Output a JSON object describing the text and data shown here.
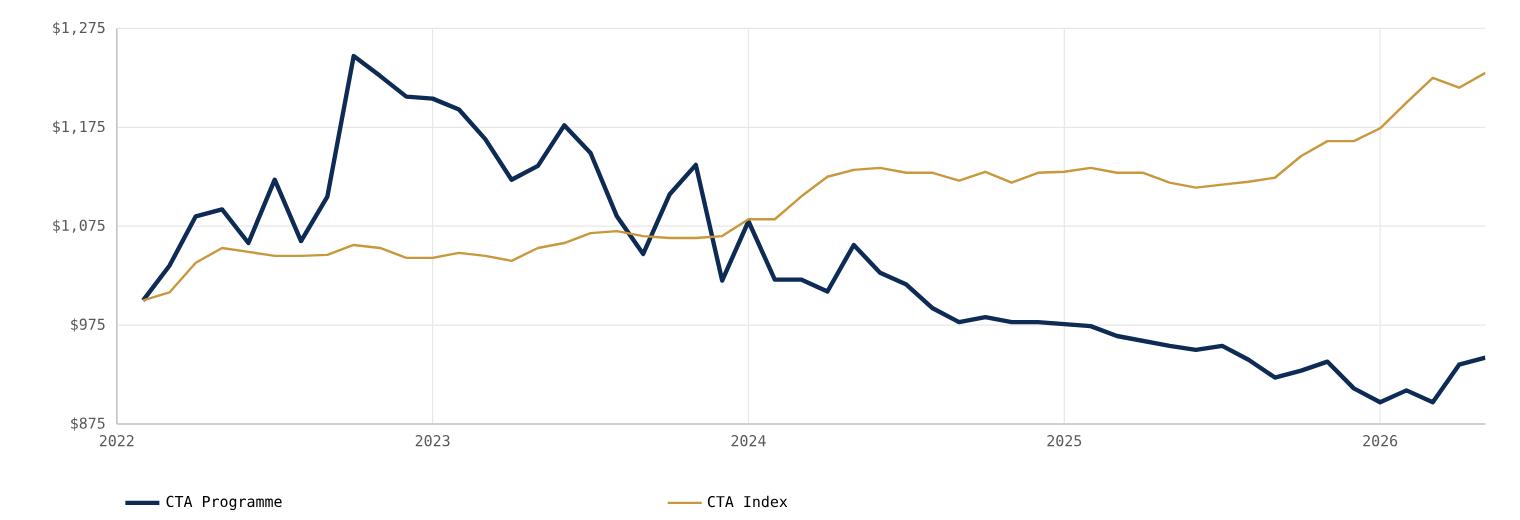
{
  "chart_data": {
    "type": "line",
    "x": [
      "2022-02",
      "2022-03",
      "2022-04",
      "2022-05",
      "2022-06",
      "2022-07",
      "2022-08",
      "2022-09",
      "2022-10",
      "2022-11",
      "2022-12",
      "2023-01",
      "2023-02",
      "2023-03",
      "2023-04",
      "2023-05",
      "2023-06",
      "2023-07",
      "2023-08",
      "2023-09",
      "2023-10",
      "2023-11",
      "2023-12",
      "2024-01",
      "2024-02",
      "2024-03",
      "2024-04",
      "2024-05",
      "2024-06",
      "2024-07",
      "2024-08",
      "2024-09",
      "2024-10",
      "2024-11",
      "2024-12",
      "2025-01",
      "2025-02",
      "2025-03",
      "2025-04",
      "2025-05",
      "2025-06",
      "2025-07",
      "2025-08",
      "2025-09",
      "2025-10",
      "2025-11",
      "2025-12",
      "2026-01",
      "2026-02",
      "2026-03",
      "2026-04",
      "2026-05"
    ],
    "series": [
      {
        "name": "CTA Programme",
        "color": "#0d2b55",
        "values": [
          1000,
          1035,
          1085,
          1092,
          1058,
          1122,
          1060,
          1105,
          1247,
          1227,
          1206,
          1204,
          1193,
          1163,
          1122,
          1136,
          1177,
          1149,
          1085,
          1047,
          1107,
          1137,
          1020,
          1080,
          1021,
          1021,
          1009,
          1056,
          1028,
          1016,
          992,
          978,
          983,
          978,
          978,
          976,
          974,
          964,
          959,
          954,
          950,
          954,
          940,
          922,
          929,
          938,
          911,
          897,
          909,
          897,
          935,
          942
        ]
      },
      {
        "name": "CTA Index",
        "color": "#c9973c",
        "values": [
          1000,
          1008,
          1038,
          1053,
          1049,
          1045,
          1045,
          1046,
          1056,
          1053,
          1043,
          1043,
          1048,
          1045,
          1040,
          1053,
          1058,
          1068,
          1070,
          1065,
          1063,
          1063,
          1065,
          1082,
          1082,
          1105,
          1125,
          1132,
          1134,
          1129,
          1129,
          1121,
          1130,
          1119,
          1129,
          1130,
          1134,
          1129,
          1129,
          1119,
          1114,
          1117,
          1120,
          1124,
          1146,
          1161,
          1161,
          1174,
          1200,
          1225,
          1215,
          1230
        ]
      }
    ],
    "xlim": [
      "2022-01",
      "2026-05"
    ],
    "xticks": [
      {
        "value": "2022",
        "label": "2022"
      },
      {
        "value": "2023",
        "label": "2023"
      },
      {
        "value": "2024",
        "label": "2024"
      },
      {
        "value": "2025",
        "label": "2025"
      },
      {
        "value": "2026",
        "label": "2026"
      }
    ],
    "ylim": [
      875,
      1275
    ],
    "yticks": [
      {
        "value": 875,
        "label": "$875"
      },
      {
        "value": 975,
        "label": "$975"
      },
      {
        "value": 1075,
        "label": "$1,075"
      },
      {
        "value": 1175,
        "label": "$1,175"
      },
      {
        "value": 1275,
        "label": "$1,275"
      }
    ],
    "grid": true,
    "legend": "bottom",
    "marker": "none",
    "line_style": "solid"
  }
}
